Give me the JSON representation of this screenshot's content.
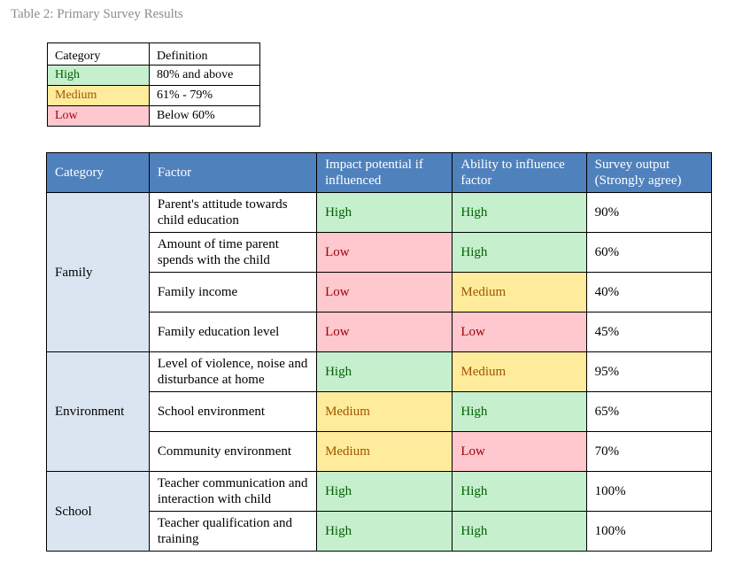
{
  "caption": "Table 2: Primary Survey Results",
  "legend": {
    "headers": [
      "Category",
      "Definition"
    ],
    "rows": [
      {
        "level": "High",
        "definition": "80% and above"
      },
      {
        "level": "Medium",
        "definition": "61% - 79%"
      },
      {
        "level": "Low",
        "definition": "Below 60%"
      }
    ]
  },
  "colors": {
    "header_blue": "#4f81bd",
    "category_blue": "#dbe5f1",
    "high_bg": "#c6efce",
    "high_text": "#006100",
    "medium_bg": "#ffeb9c",
    "medium_text": "#9c5700",
    "low_bg": "#ffc7ce",
    "low_text": "#9c0006"
  },
  "table": {
    "headers": [
      "Category",
      "Factor",
      "Impact potential if influenced",
      "Ability to influence factor",
      "Survey output (Strongly agree)"
    ],
    "groups": [
      {
        "category": "Family",
        "rows": [
          {
            "factor": "Parent's attitude towards child education",
            "impact": "High",
            "ability": "High",
            "output": "90%"
          },
          {
            "factor": "Amount of time parent spends with the child",
            "impact": "Low",
            "ability": "High",
            "output": "60%"
          },
          {
            "factor": "Family income",
            "impact": "Low",
            "ability": "Medium",
            "output": "40%"
          },
          {
            "factor": "Family education level",
            "impact": "Low",
            "ability": "Low",
            "output": "45%"
          }
        ]
      },
      {
        "category": "Environment",
        "rows": [
          {
            "factor": "Level of violence, noise and disturbance at home",
            "impact": "High",
            "ability": "Medium",
            "output": "95%"
          },
          {
            "factor": "School environment",
            "impact": "Medium",
            "ability": "High",
            "output": "65%"
          },
          {
            "factor": "Community environment",
            "impact": "Medium",
            "ability": "Low",
            "output": "70%"
          }
        ]
      },
      {
        "category": "School",
        "rows": [
          {
            "factor": "Teacher communication and interaction with child",
            "impact": "High",
            "ability": "High",
            "output": "100%"
          },
          {
            "factor": "Teacher qualification and training",
            "impact": "High",
            "ability": "High",
            "output": "100%"
          }
        ]
      }
    ]
  }
}
